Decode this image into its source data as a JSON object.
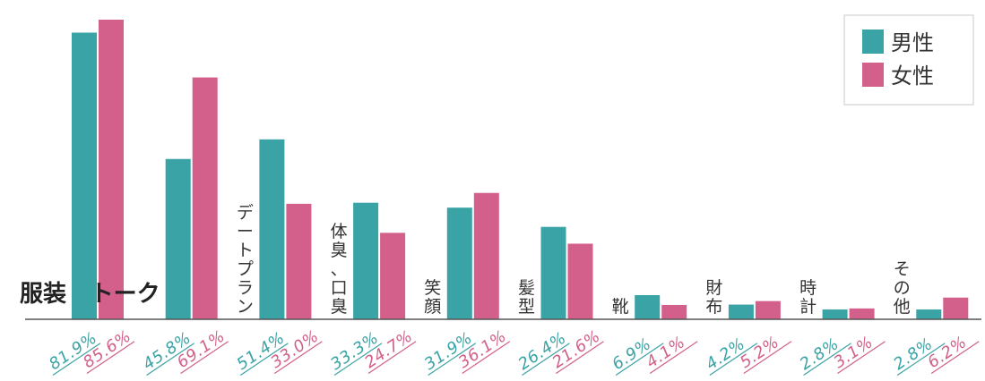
{
  "chart_data": {
    "type": "bar",
    "categories": [
      "服装",
      "トーク",
      "デートプラン",
      "体臭、口臭",
      "笑顔",
      "髪型",
      "靴",
      "財布",
      "時計",
      "その他"
    ],
    "series": [
      {
        "name": "男性",
        "values": [
          81.9,
          45.8,
          51.4,
          33.3,
          31.9,
          26.4,
          6.9,
          4.2,
          2.8,
          2.8
        ]
      },
      {
        "name": "女性",
        "values": [
          85.6,
          69.1,
          33.0,
          24.7,
          36.1,
          21.6,
          4.1,
          5.2,
          3.1,
          6.2
        ]
      }
    ],
    "value_labels": {
      "男性": [
        "81.9%",
        "45.8%",
        "51.4%",
        "33.3%",
        "31.9%",
        "26.4%",
        "6.9%",
        "4.2%",
        "2.8%",
        "2.8%"
      ],
      "女性": [
        "85.6%",
        "69.1%",
        "33.0%",
        "24.7%",
        "36.1%",
        "21.6%",
        "4.1%",
        "5.2%",
        "3.1%",
        "6.2%"
      ]
    },
    "unit": "%",
    "ylim": [
      0,
      90
    ],
    "legend_position": "top-right",
    "grid": false,
    "colors": {
      "男性": "#3aa3a6",
      "女性": "#d2608a"
    }
  }
}
